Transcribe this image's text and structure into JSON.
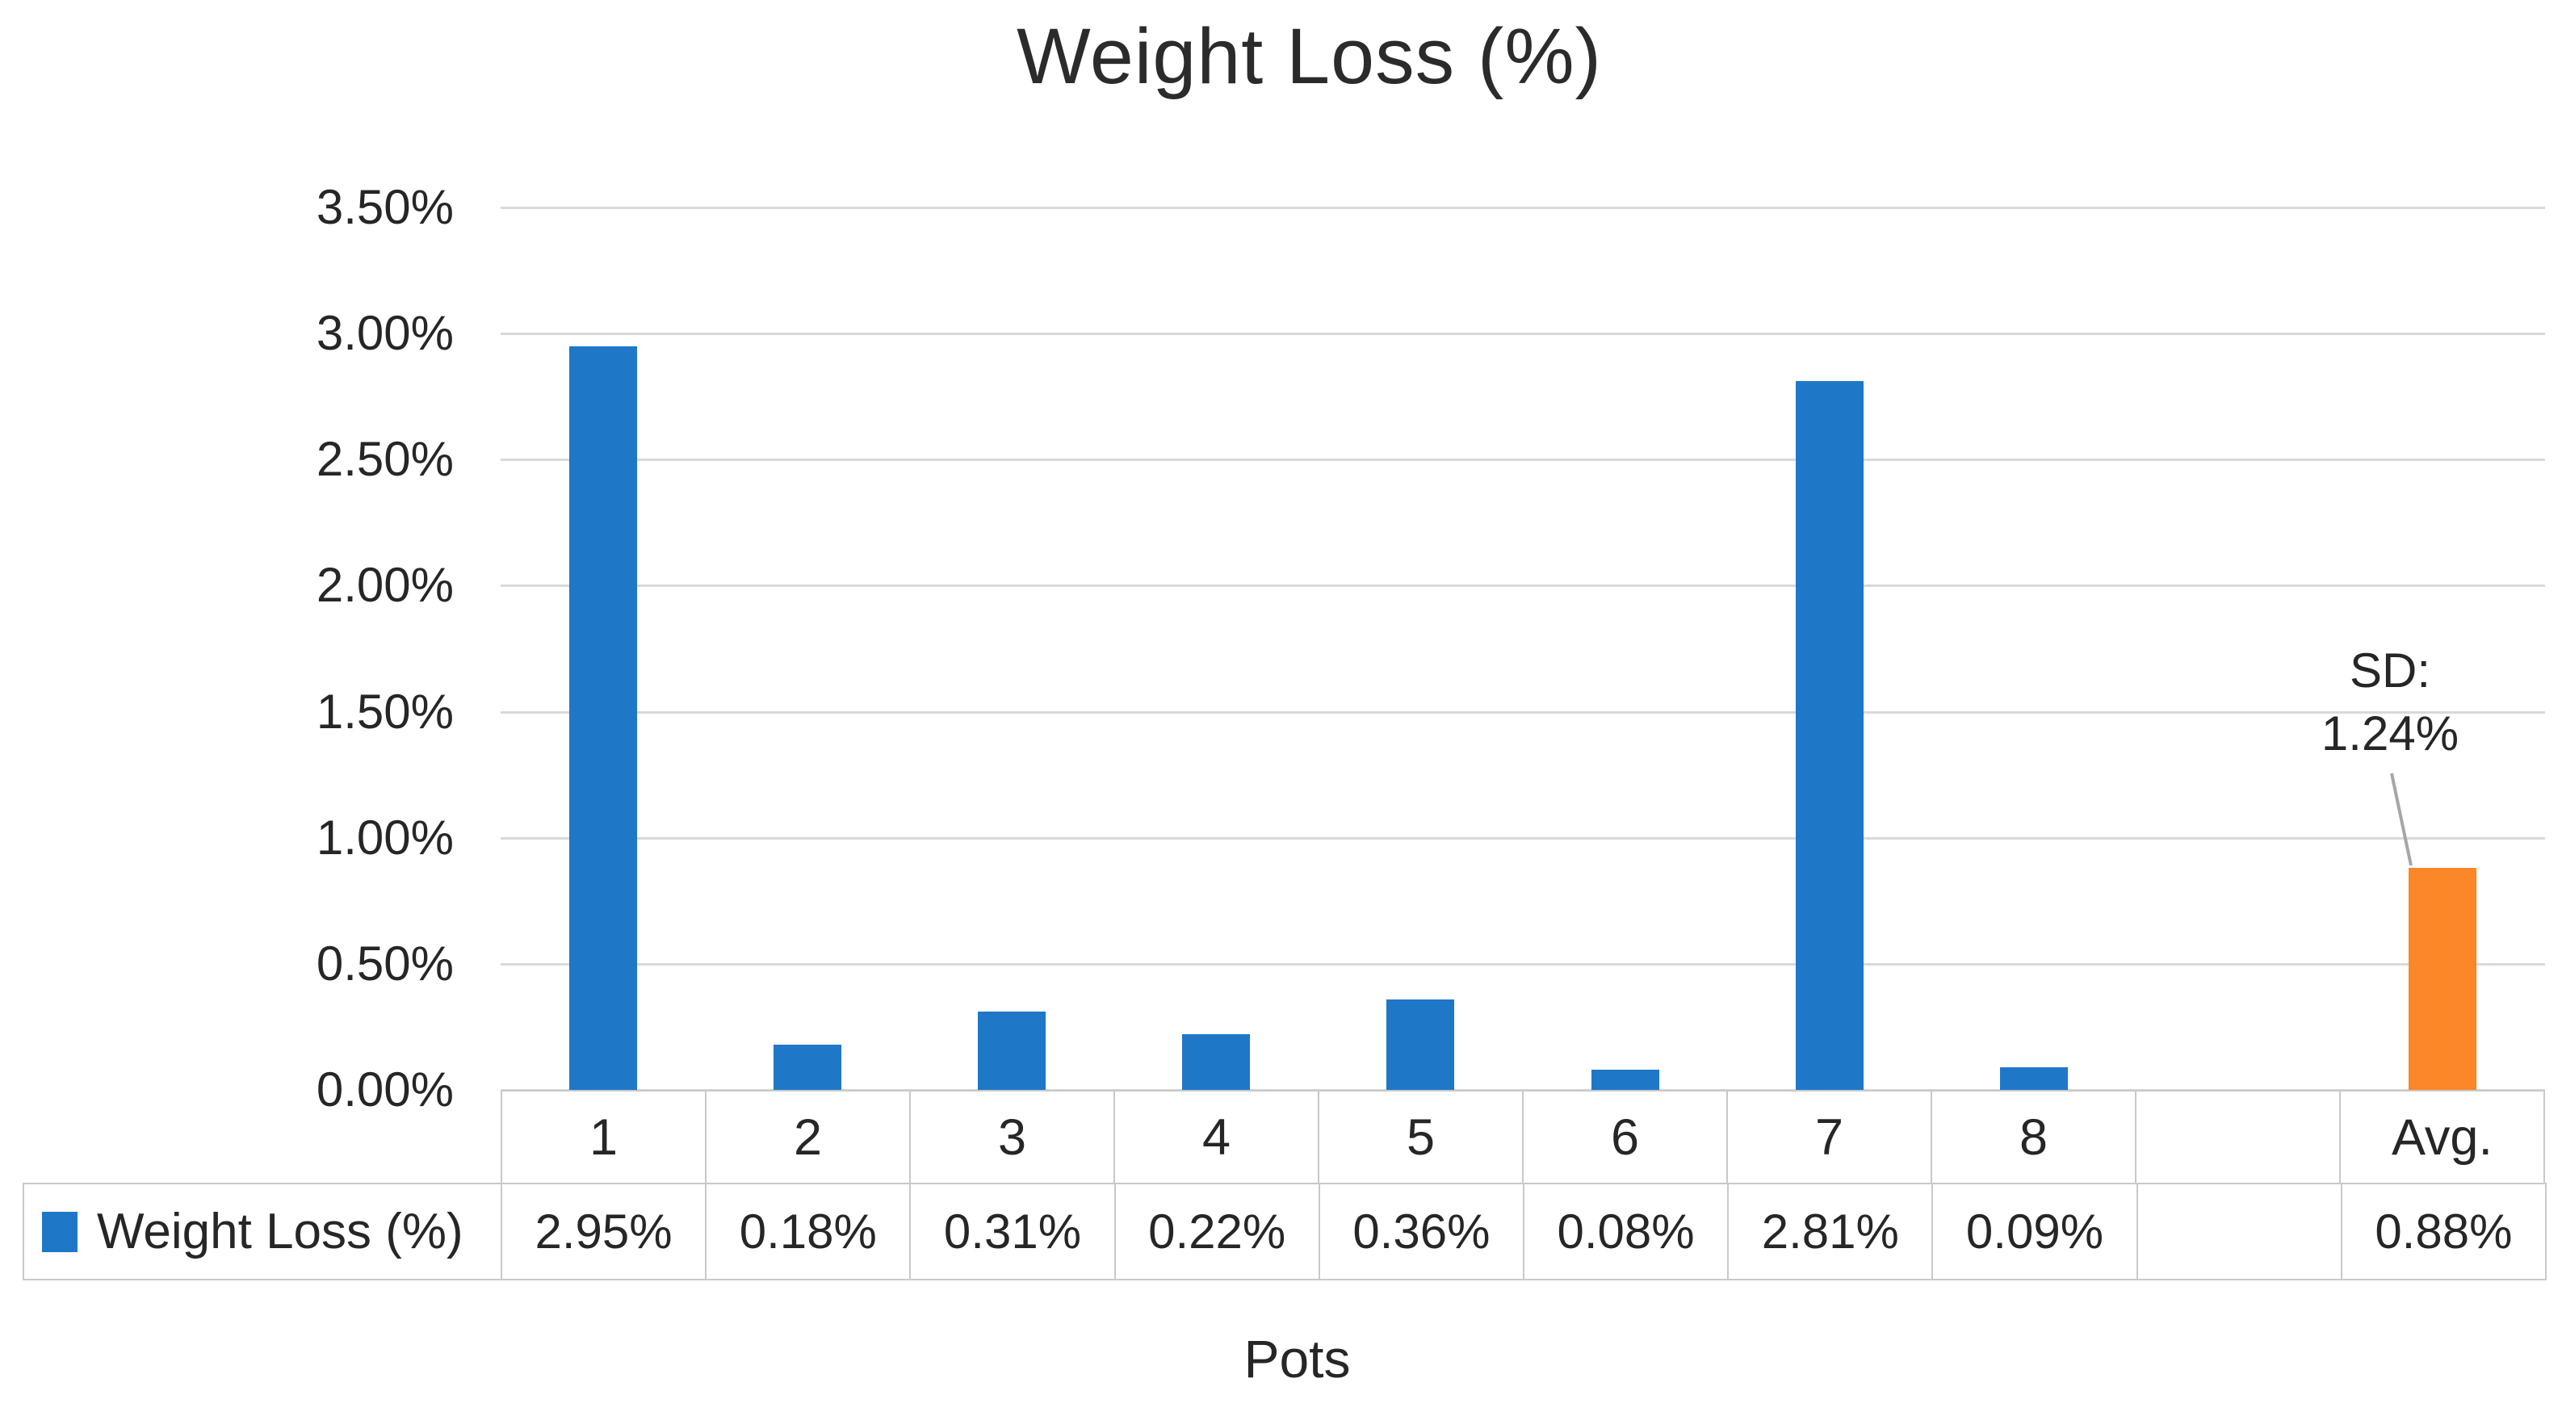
{
  "title": "Weight Loss (%)",
  "axis": {
    "y_ticks": [
      "3.50%",
      "3.00%",
      "2.50%",
      "2.00%",
      "1.50%",
      "1.00%",
      "0.50%",
      "0.00%"
    ],
    "x_title": "Pots"
  },
  "legend": {
    "series_label": "Weight Loss (%)"
  },
  "annotation": {
    "line1": "SD:",
    "line2": "1.24%"
  },
  "table": {
    "categories": [
      "1",
      "2",
      "3",
      "4",
      "5",
      "6",
      "7",
      "8",
      "",
      "Avg."
    ],
    "values": [
      "2.95%",
      "0.18%",
      "0.31%",
      "0.22%",
      "0.36%",
      "0.08%",
      "2.81%",
      "0.09%",
      "",
      "0.88%"
    ]
  },
  "chart_data": {
    "type": "bar",
    "title": "Weight Loss (%)",
    "xlabel": "Pots",
    "ylabel": "",
    "categories": [
      "1",
      "2",
      "3",
      "4",
      "5",
      "6",
      "7",
      "8",
      "",
      "Avg."
    ],
    "values": [
      2.95,
      0.18,
      0.31,
      0.22,
      0.36,
      0.08,
      2.81,
      0.09,
      null,
      0.88
    ],
    "unit": "%",
    "ylim": [
      0,
      3.5
    ],
    "ytick_step": 0.5,
    "grid": true,
    "data_table_shown": true,
    "legend_position": "data-table-left",
    "annotations": [
      {
        "text": "SD: 1.24%",
        "target_category": "Avg."
      }
    ],
    "sd_value": "1.24%",
    "avg_value": "0.88%"
  },
  "colors": {
    "series_blue": "#1f77c8",
    "avg_orange": "#fb8728",
    "gridline": "#d9d9d9",
    "table_border": "#c9c9c9",
    "text": "#262626",
    "leader_line": "#a6a6a6"
  }
}
